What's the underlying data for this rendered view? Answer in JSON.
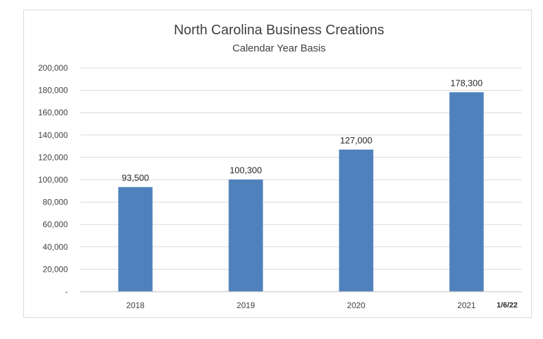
{
  "chart_data": {
    "type": "bar",
    "title": "North Carolina Business Creations",
    "subtitle": "Calendar Year Basis",
    "categories": [
      "2018",
      "2019",
      "2020",
      "2021"
    ],
    "values": [
      93500,
      100300,
      127000,
      178300
    ],
    "data_labels": [
      "93,500",
      "100,300",
      "127,000",
      "178,300"
    ],
    "ylim": [
      0,
      200000
    ],
    "yticks": [
      {
        "value": 0,
        "label": "-"
      },
      {
        "value": 20000,
        "label": "20,000"
      },
      {
        "value": 40000,
        "label": "40,000"
      },
      {
        "value": 60000,
        "label": "60,000"
      },
      {
        "value": 80000,
        "label": "80,000"
      },
      {
        "value": 100000,
        "label": "100,000"
      },
      {
        "value": 120000,
        "label": "120,000"
      },
      {
        "value": 140000,
        "label": "140,000"
      },
      {
        "value": 160000,
        "label": "160,000"
      },
      {
        "value": 180000,
        "label": "180,000"
      },
      {
        "value": 200000,
        "label": "200,000"
      }
    ],
    "grid": true,
    "legend": "none",
    "bar_color": "#4F81BD",
    "footnote": "1/6/22"
  }
}
